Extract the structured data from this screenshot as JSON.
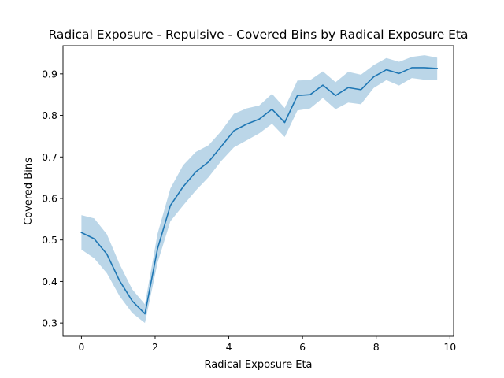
{
  "chart_data": {
    "type": "line",
    "title": "Radical Exposure - Repulsive - Covered Bins by Radical Exposure Eta",
    "xlabel": "Radical Exposure Eta",
    "ylabel": "Covered Bins",
    "xlim": [
      -0.5,
      10.1
    ],
    "ylim": [
      0.268,
      0.968
    ],
    "xticks": [
      0,
      2,
      4,
      6,
      8,
      10
    ],
    "yticks": [
      0.3,
      0.4,
      0.5,
      0.6,
      0.7,
      0.8,
      0.9
    ],
    "ytick_labels": [
      "0.3",
      "0.4",
      "0.5",
      "0.6",
      "0.7",
      "0.8",
      "0.9"
    ],
    "grid": false,
    "series": [
      {
        "color": "#1f77b4",
        "band_color": "#1f77b4",
        "band_opacity": 0.3,
        "x": [
          0,
          0.345,
          0.69,
          1.034,
          1.379,
          1.724,
          2.069,
          2.414,
          2.759,
          3.103,
          3.448,
          3.793,
          4.138,
          4.483,
          4.828,
          5.172,
          5.517,
          5.862,
          6.207,
          6.552,
          6.897,
          7.241,
          7.586,
          7.931,
          8.276,
          8.621,
          8.966,
          9.31,
          9.655
        ],
        "values": [
          0.518,
          0.503,
          0.466,
          0.402,
          0.353,
          0.322,
          0.48,
          0.583,
          0.628,
          0.664,
          0.688,
          0.725,
          0.763,
          0.779,
          0.791,
          0.815,
          0.783,
          0.848,
          0.85,
          0.873,
          0.848,
          0.867,
          0.862,
          0.893,
          0.91,
          0.901,
          0.915,
          0.915,
          0.913
        ],
        "upper": [
          0.56,
          0.552,
          0.514,
          0.442,
          0.381,
          0.345,
          0.516,
          0.624,
          0.68,
          0.712,
          0.728,
          0.762,
          0.804,
          0.817,
          0.824,
          0.852,
          0.818,
          0.884,
          0.885,
          0.906,
          0.88,
          0.905,
          0.898,
          0.921,
          0.938,
          0.929,
          0.941,
          0.945,
          0.939
        ],
        "lower": [
          0.477,
          0.456,
          0.42,
          0.365,
          0.324,
          0.3,
          0.446,
          0.545,
          0.583,
          0.619,
          0.651,
          0.69,
          0.723,
          0.74,
          0.757,
          0.78,
          0.748,
          0.812,
          0.817,
          0.842,
          0.815,
          0.831,
          0.827,
          0.866,
          0.885,
          0.872,
          0.89,
          0.886,
          0.886
        ]
      }
    ]
  }
}
